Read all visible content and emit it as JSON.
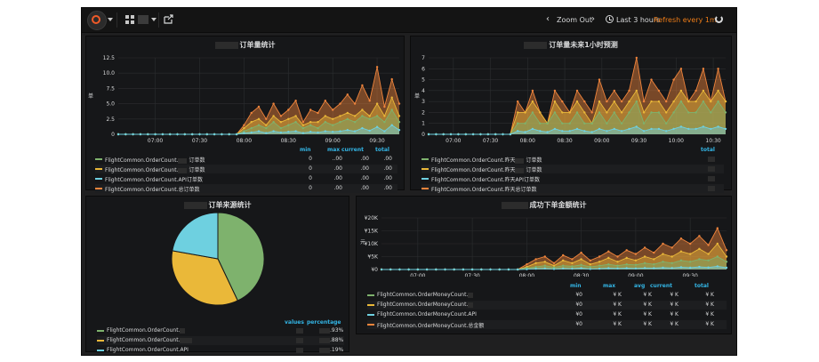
{
  "navbar": {
    "zoom_out_label": "Zoom Out",
    "time_range_label": "Last 3 hours",
    "refresh_label": "Refresh every 1m"
  },
  "colors": {
    "green": "#7eb26d",
    "yellow": "#eab839",
    "blue": "#6ed0e0",
    "orange": "#ef843c",
    "accent": "#33b5e5",
    "refresh": "#eb7b18"
  },
  "panels": {
    "order_stats": {
      "title": "订单量统计",
      "y_unit": "单",
      "headers": [
        "min",
        "max",
        "current",
        "total"
      ],
      "series": [
        {
          "name": "FlightCommon.OrderCount.",
          "suffix": "订单数",
          "values": [
            "0",
            "..00",
            ".00",
            ".00"
          ]
        },
        {
          "name": "FlightCommon.OrderCount.",
          "suffix": "订单数",
          "values": [
            "0",
            ".00",
            ".00",
            ".00"
          ]
        },
        {
          "name": "FlightCommon.OrderCount.API订单数",
          "suffix": "",
          "values": [
            "0",
            ".00",
            ".00",
            ".00"
          ]
        },
        {
          "name": "FlightCommon.OrderCount.总订单数",
          "suffix": "",
          "values": [
            "0",
            ".00",
            ".00",
            ".00"
          ]
        }
      ]
    },
    "order_forecast": {
      "title": "订单量未来1小时预测",
      "y_unit": "单",
      "headers": [
        "total"
      ],
      "series": [
        {
          "name": "FlightCommon.OrderCount.昨天",
          "suffix": "订单数"
        },
        {
          "name": "FlightCommon.OrderCount.昨天",
          "suffix": "订单数"
        },
        {
          "name": "FlightCommon.OrderCount.昨天API订单数",
          "suffix": ""
        },
        {
          "name": "FlightCommon.OrderCount.昨天总订单数",
          "suffix": ""
        }
      ]
    },
    "order_source": {
      "title": "订单来源统计",
      "headers": [
        "values",
        "percentage"
      ],
      "series": [
        {
          "name": "FlightCommon.OrderCount.",
          "percentage": ".93%"
        },
        {
          "name": "FlightCommon.OrderCount.",
          "percentage": ".88%"
        },
        {
          "name": "FlightCommon.OrderCount.API",
          "percentage": ".19%"
        }
      ]
    },
    "order_amount": {
      "title": "成功下单金额统计",
      "y_unit": "元",
      "headers": [
        "min",
        "max",
        "avg",
        "current",
        "total"
      ],
      "series": [
        {
          "name": "FlightCommon.OrderMoneyCount.",
          "values": [
            "¥0",
            "¥ K",
            "¥ K",
            "¥ K",
            "¥ K"
          ]
        },
        {
          "name": "FlightCommon.OrderMoneyCount.",
          "values": [
            "¥0",
            "¥ K",
            "¥ K",
            "¥ K",
            "¥ K"
          ]
        },
        {
          "name": "FlightCommon.OrderMoneyCount.API",
          "values": [
            "¥0",
            "¥ K",
            "¥ K",
            "¥ K",
            "¥ K"
          ]
        },
        {
          "name": "FlightCommon.OrderMoneyCount.总金额",
          "values": [
            "¥0",
            "¥ K",
            "¥ K",
            "¥ K",
            "¥ K"
          ]
        }
      ]
    }
  },
  "chart_data": [
    {
      "type": "area",
      "title": "订单量统计",
      "ylabel": "单",
      "y_ticks": [
        "0",
        "2.5",
        "5.0",
        "7.5",
        "10.0",
        "12.5"
      ],
      "ylim": [
        0,
        12.5
      ],
      "x_ticks": [
        "07:00",
        "07:30",
        "08:00",
        "08:30",
        "09:00",
        "09:30"
      ],
      "xlim": [
        "06:35",
        "09:45"
      ],
      "x": [
        "06:35",
        "06:40",
        "06:45",
        "06:50",
        "06:55",
        "07:00",
        "07:05",
        "07:10",
        "07:15",
        "07:20",
        "07:25",
        "07:30",
        "07:35",
        "07:40",
        "07:45",
        "07:50",
        "07:55",
        "08:00",
        "08:05",
        "08:10",
        "08:15",
        "08:20",
        "08:25",
        "08:30",
        "08:35",
        "08:40",
        "08:45",
        "08:50",
        "08:55",
        "09:00",
        "09:05",
        "09:10",
        "09:15",
        "09:20",
        "09:25",
        "09:30",
        "09:35",
        "09:40",
        "09:45"
      ],
      "series": [
        {
          "values": [
            0,
            0,
            0,
            0,
            0,
            0,
            0,
            0,
            0,
            0,
            0,
            0,
            0,
            0,
            0,
            0,
            0,
            0.5,
            1,
            1.5,
            1,
            2,
            1,
            1.5,
            2,
            1,
            1.5,
            1,
            2,
            1.5,
            2,
            2.5,
            2,
            3,
            2.5,
            3,
            2,
            4,
            2
          ]
        },
        {
          "values": [
            0,
            0,
            0,
            0,
            0,
            0,
            0,
            0,
            0,
            0,
            0,
            0,
            0,
            0,
            0,
            0,
            0,
            1,
            2,
            2.5,
            1.5,
            3,
            2,
            2.5,
            3,
            1.5,
            2,
            2,
            3,
            2.5,
            3,
            3.5,
            3,
            4,
            3,
            5,
            3,
            6,
            3
          ]
        },
        {
          "values": [
            0,
            0,
            0,
            0,
            0,
            0,
            0,
            0,
            0,
            0,
            0,
            0,
            0,
            0,
            0,
            0,
            0,
            0.2,
            0.3,
            0.5,
            0.2,
            0.5,
            0.3,
            0.4,
            0.5,
            0.2,
            0.4,
            0.3,
            0.5,
            0.4,
            0.5,
            0.7,
            0.5,
            1,
            0.6,
            1.2,
            0.5,
            1.5,
            0.7
          ]
        },
        {
          "values": [
            0,
            0,
            0,
            0,
            0,
            0,
            0,
            0,
            0,
            0,
            0,
            0,
            0,
            0,
            0,
            0,
            0,
            1.5,
            3.5,
            4.5,
            2.5,
            5,
            3,
            4,
            5.5,
            2,
            4,
            3.5,
            5.5,
            4,
            5,
            6.5,
            5,
            8,
            5.5,
            11,
            4.5,
            9,
            5
          ]
        }
      ]
    },
    {
      "type": "area",
      "title": "订单量未来1小时预测",
      "ylabel": "单",
      "y_ticks": [
        "0",
        "1",
        "2",
        "3",
        "4",
        "5",
        "6",
        "7"
      ],
      "ylim": [
        0,
        7
      ],
      "x_ticks": [
        "07:00",
        "07:30",
        "08:00",
        "08:30",
        "09:00",
        "09:30",
        "10:00",
        "10:30"
      ],
      "xlim": [
        "06:40",
        "10:40"
      ],
      "x": [
        "06:40",
        "06:46",
        "06:52",
        "06:58",
        "07:04",
        "07:10",
        "07:16",
        "07:22",
        "07:28",
        "07:34",
        "07:40",
        "07:46",
        "07:52",
        "07:58",
        "08:04",
        "08:10",
        "08:16",
        "08:22",
        "08:28",
        "08:34",
        "08:40",
        "08:46",
        "08:52",
        "08:58",
        "09:04",
        "09:10",
        "09:16",
        "09:22",
        "09:28",
        "09:34",
        "09:40",
        "09:46",
        "09:52",
        "09:58",
        "10:04",
        "10:10",
        "10:16",
        "10:22",
        "10:28",
        "10:34",
        "10:40"
      ],
      "series": [
        {
          "values": [
            0,
            0,
            0,
            0,
            0,
            0,
            0,
            0,
            0,
            0,
            0,
            0,
            1,
            1,
            2,
            1,
            1,
            2,
            1,
            1,
            2,
            1,
            1,
            2,
            1,
            2,
            1,
            2,
            3,
            1,
            2,
            2,
            1,
            2,
            3,
            2,
            2,
            3,
            2,
            3,
            2
          ]
        },
        {
          "values": [
            0,
            0,
            0,
            0,
            0,
            0,
            0,
            0,
            0,
            0,
            0,
            0,
            2,
            2,
            3,
            2,
            1,
            3,
            2,
            2,
            3,
            2,
            1,
            3,
            2,
            3,
            2,
            3,
            4,
            2,
            3,
            3,
            2,
            3,
            4,
            3,
            3,
            4,
            3,
            4,
            3
          ]
        },
        {
          "values": [
            0,
            0,
            0,
            0,
            0,
            0,
            0,
            0,
            0,
            0,
            0,
            0,
            0.3,
            0.2,
            0.5,
            0.3,
            0.2,
            0.5,
            0.3,
            0.3,
            0.5,
            0.3,
            0.2,
            0.5,
            0.3,
            0.5,
            0.3,
            0.5,
            0.7,
            0.3,
            0.5,
            0.5,
            0.3,
            0.5,
            0.7,
            0.5,
            0.5,
            0.7,
            0.5,
            0.7,
            0.5
          ]
        },
        {
          "values": [
            0,
            0,
            0,
            0,
            0,
            0,
            0,
            0,
            0,
            0,
            0,
            0,
            3,
            2,
            4,
            2,
            1,
            4,
            3,
            2,
            4,
            3,
            2,
            5,
            3,
            4,
            3,
            4,
            7,
            3,
            5,
            4,
            3,
            5,
            6,
            3,
            4,
            6,
            3,
            6,
            3
          ]
        }
      ]
    },
    {
      "type": "pie",
      "title": "订单来源统计",
      "series": [
        {
          "value": 0.4293
        },
        {
          "value": 0.3488
        },
        {
          "value": 0.2219
        }
      ]
    },
    {
      "type": "area",
      "title": "成功下单金额统计",
      "ylabel": "元",
      "y_ticks": [
        "¥0",
        "¥5K",
        "¥10K",
        "¥15K",
        "¥20K"
      ],
      "ylim": [
        0,
        20000
      ],
      "x_ticks": [
        "07:00",
        "07:30",
        "08:00",
        "08:30",
        "09:00",
        "09:30"
      ],
      "xlim": [
        "06:40",
        "09:50"
      ],
      "x": [
        "06:40",
        "06:45",
        "06:50",
        "06:55",
        "07:00",
        "07:05",
        "07:10",
        "07:15",
        "07:20",
        "07:25",
        "07:30",
        "07:35",
        "07:40",
        "07:45",
        "07:50",
        "07:55",
        "08:00",
        "08:05",
        "08:10",
        "08:15",
        "08:20",
        "08:25",
        "08:30",
        "08:35",
        "08:40",
        "08:45",
        "08:50",
        "08:55",
        "09:00",
        "09:05",
        "09:10",
        "09:15",
        "09:20",
        "09:25",
        "09:30",
        "09:35",
        "09:40",
        "09:45",
        "09:50"
      ],
      "series": [
        {
          "values": [
            0,
            0,
            0,
            0,
            0,
            0,
            0,
            0,
            0,
            0,
            0,
            0,
            0,
            0,
            0,
            0,
            500,
            1000,
            1500,
            800,
            1500,
            1200,
            1800,
            1000,
            1500,
            2000,
            1500,
            2000,
            1800,
            2500,
            2000,
            3000,
            2500,
            3500,
            3000,
            4000,
            3500,
            5000,
            3000
          ]
        },
        {
          "values": [
            0,
            0,
            0,
            0,
            0,
            0,
            0,
            0,
            0,
            0,
            0,
            0,
            0,
            0,
            0,
            0,
            1000,
            2500,
            3000,
            1500,
            3500,
            2500,
            4000,
            2000,
            3000,
            4500,
            3000,
            4500,
            3500,
            5000,
            4000,
            6000,
            5000,
            7000,
            6000,
            8000,
            6000,
            10000,
            5000
          ]
        },
        {
          "values": [
            0,
            0,
            0,
            0,
            0,
            0,
            0,
            0,
            0,
            0,
            0,
            0,
            0,
            0,
            0,
            0,
            100,
            300,
            400,
            200,
            400,
            300,
            500,
            200,
            300,
            500,
            400,
            500,
            400,
            600,
            500,
            700,
            600,
            900,
            700,
            1000,
            800,
            1200,
            700
          ]
        },
        {
          "values": [
            0,
            0,
            0,
            0,
            0,
            0,
            0,
            0,
            0,
            0,
            0,
            0,
            0,
            0,
            0,
            0,
            2000,
            4000,
            5000,
            2500,
            5500,
            4000,
            6500,
            3500,
            5000,
            7000,
            5000,
            7500,
            6000,
            8500,
            6500,
            10000,
            8500,
            12000,
            10000,
            13000,
            9500,
            16000,
            7500
          ]
        }
      ]
    }
  ]
}
